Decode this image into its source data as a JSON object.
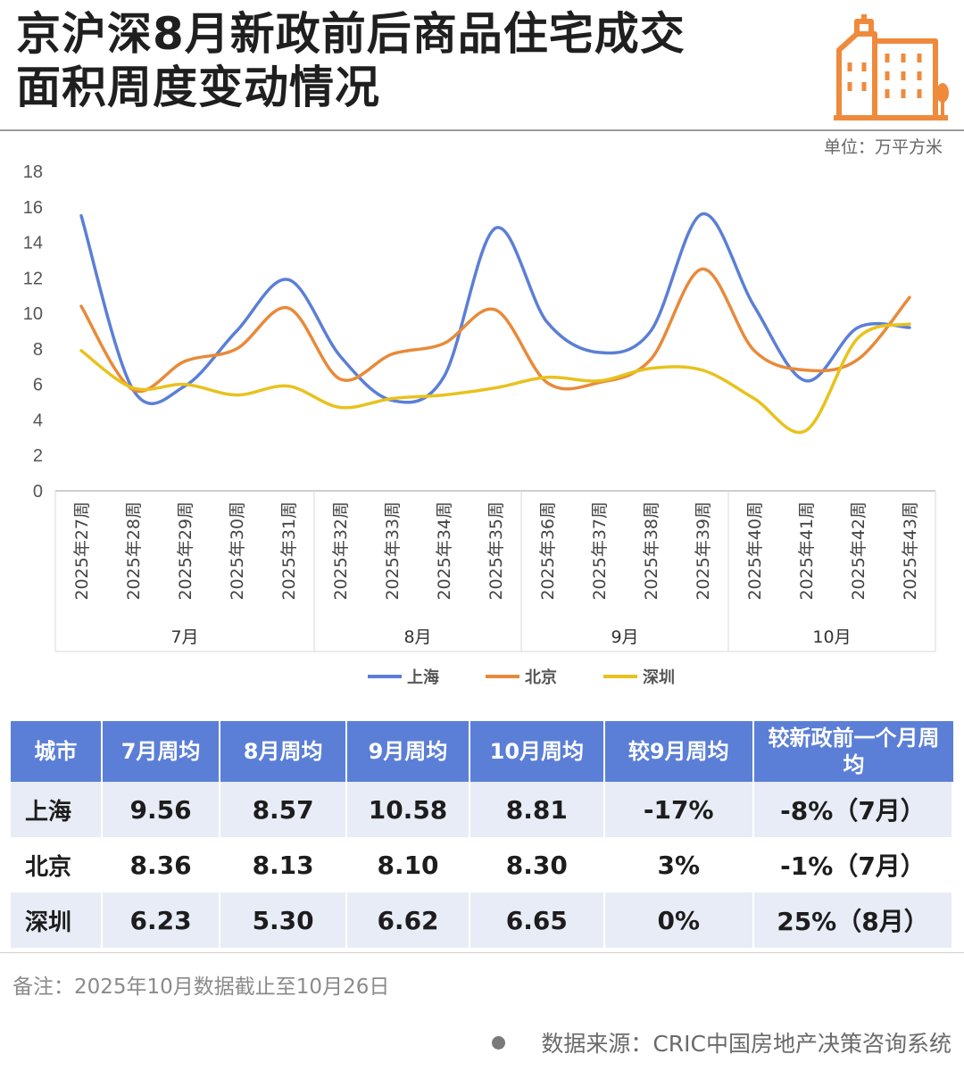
{
  "header": {
    "title_line1": "京沪深8月新政前后商品住宅成交",
    "title_line2": "面积周度变动情况",
    "unit": "单位：万平方米",
    "logo_icon": "buildings-icon"
  },
  "chart_data": {
    "type": "line",
    "xlabels": [
      "2025年27周",
      "2025年28周",
      "2025年29周",
      "2025年30周",
      "2025年31周",
      "2025年32周",
      "2025年33周",
      "2025年34周",
      "2025年35周",
      "2025年36周",
      "2025年37周",
      "2025年38周",
      "2025年39周",
      "2025年40周",
      "2025年41周",
      "2025年42周",
      "2025年43周"
    ],
    "month_groups": [
      {
        "label": "7月",
        "span": 5
      },
      {
        "label": "8月",
        "span": 4
      },
      {
        "label": "9月",
        "span": 4
      },
      {
        "label": "10月",
        "span": 4
      }
    ],
    "yticks": [
      "0",
      "2",
      "4",
      "6",
      "8",
      "10",
      "12",
      "14",
      "16",
      "18"
    ],
    "ylim": [
      0,
      18
    ],
    "grid": false,
    "legend_position": "bottom",
    "series": [
      {
        "name": "上海",
        "color": "#5b7fd6",
        "values": [
          15.5,
          5.7,
          5.9,
          9.0,
          11.9,
          7.6,
          5.1,
          6.4,
          14.8,
          9.5,
          7.8,
          9.0,
          15.6,
          10.4,
          6.2,
          9.2,
          9.2
        ]
      },
      {
        "name": "北京",
        "color": "#e88a3a",
        "values": [
          10.4,
          5.7,
          7.3,
          8.0,
          10.3,
          6.3,
          7.7,
          8.3,
          10.2,
          6.1,
          6.1,
          7.4,
          12.5,
          7.9,
          6.8,
          7.4,
          10.9
        ]
      },
      {
        "name": "深圳",
        "color": "#e8c21e",
        "values": [
          7.9,
          5.8,
          6.0,
          5.4,
          5.9,
          4.7,
          5.2,
          5.4,
          5.8,
          6.4,
          6.2,
          6.9,
          6.8,
          5.2,
          3.4,
          8.6,
          9.4
        ]
      }
    ]
  },
  "table": {
    "headers": [
      "城市",
      "7月周均",
      "8月周均",
      "9月周均",
      "10月周均",
      "较9月周均",
      "较新政前一个月周均"
    ],
    "rows": [
      [
        "上海",
        "9.56",
        "8.57",
        "10.58",
        "8.81",
        "-17%",
        "-8%（7月）"
      ],
      [
        "北京",
        "8.36",
        "8.13",
        "8.10",
        "8.30",
        "3%",
        "-1%（7月）"
      ],
      [
        "深圳",
        "6.23",
        "5.30",
        "6.62",
        "6.65",
        "0%",
        "25%（8月）"
      ]
    ]
  },
  "footer": {
    "note": "备注：2025年10月数据截止至10月26日",
    "source": "数据来源：CRIC中国房地产决策咨询系统"
  }
}
